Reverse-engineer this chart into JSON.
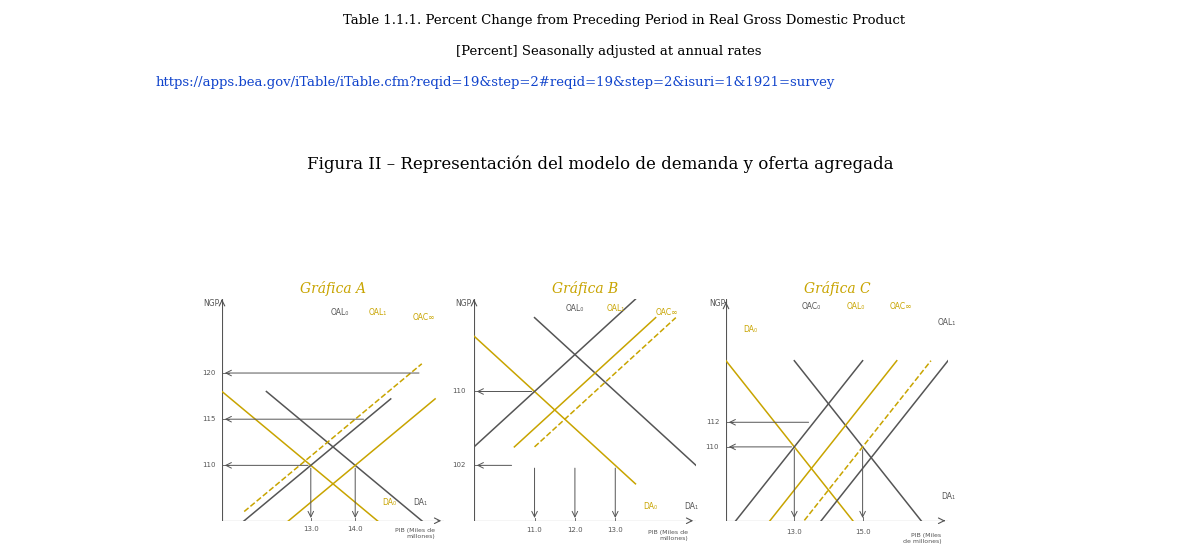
{
  "main_title": "Figura II – Representación del modelo de demanda y oferta agregada",
  "header_line1": "Table 1.1.1. Percent Change from Preceding Period in Real Gross Domestic Product",
  "header_line2": "[Percent] Seasonally adjusted at annual rates",
  "header_url": "https://apps.bea.gov/iTable/iTable.cfm?reqid=19&step=2#reqid=19&step=2&isuri=1&1921=survey",
  "grafica_titles": [
    "Gráfica A",
    "Gráfica B",
    "Gráfica C"
  ],
  "title_color": "#C8A400",
  "dark_color": "#555555",
  "gold_color": "#C8A400",
  "gold_dashed_color": "#C8A400",
  "bg_color": "#ffffff"
}
